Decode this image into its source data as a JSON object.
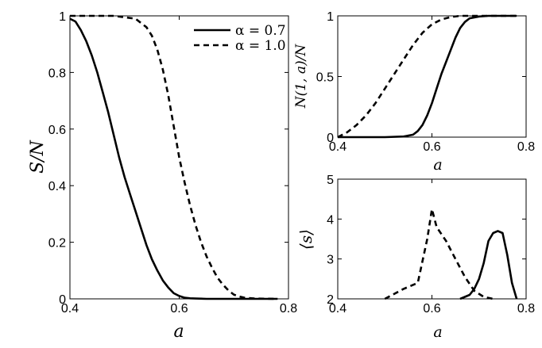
{
  "chart_data": [
    {
      "type": "line",
      "title": "",
      "xlabel": "a",
      "ylabel": "S/N",
      "xlim": [
        0.4,
        0.8
      ],
      "ylim": [
        0,
        1
      ],
      "xticks": [
        "0.4",
        "0.6",
        "0.8"
      ],
      "yticks": [
        "0",
        "0.2",
        "0.4",
        "0.6",
        "0.8",
        "1"
      ],
      "legend_position": "top-right",
      "series": [
        {
          "name": "α = 0.7",
          "style": "solid",
          "x": [
            0.4,
            0.41,
            0.42,
            0.43,
            0.44,
            0.45,
            0.46,
            0.47,
            0.48,
            0.49,
            0.5,
            0.51,
            0.52,
            0.53,
            0.54,
            0.55,
            0.56,
            0.57,
            0.58,
            0.59,
            0.6,
            0.61,
            0.62,
            0.63,
            0.65,
            0.7,
            0.78
          ],
          "y": [
            0.99,
            0.98,
            0.95,
            0.91,
            0.86,
            0.8,
            0.73,
            0.66,
            0.58,
            0.5,
            0.43,
            0.37,
            0.31,
            0.25,
            0.19,
            0.14,
            0.1,
            0.065,
            0.04,
            0.02,
            0.01,
            0.004,
            0.002,
            0.001,
            0.0,
            0.0,
            0.0
          ]
        },
        {
          "name": "α = 1.0",
          "style": "dashed",
          "x": [
            0.4,
            0.45,
            0.48,
            0.5,
            0.52,
            0.54,
            0.55,
            0.56,
            0.57,
            0.58,
            0.59,
            0.6,
            0.61,
            0.62,
            0.63,
            0.64,
            0.65,
            0.66,
            0.67,
            0.68,
            0.69,
            0.7,
            0.71,
            0.72,
            0.74,
            0.78
          ],
          "y": [
            1.0,
            1.0,
            1.0,
            0.995,
            0.99,
            0.96,
            0.93,
            0.88,
            0.81,
            0.72,
            0.61,
            0.5,
            0.41,
            0.33,
            0.26,
            0.2,
            0.15,
            0.11,
            0.075,
            0.05,
            0.03,
            0.015,
            0.008,
            0.004,
            0.001,
            0.0
          ]
        }
      ]
    },
    {
      "type": "line",
      "title": "",
      "xlabel": "a",
      "ylabel": "N(1, a)/N",
      "xlim": [
        0.4,
        0.8
      ],
      "ylim": [
        0,
        1
      ],
      "xticks": [
        "0.4",
        "0.6",
        "0.8"
      ],
      "yticks": [
        "0",
        "0.5",
        "1"
      ],
      "series": [
        {
          "name": "α = 0.7",
          "style": "solid",
          "x": [
            0.4,
            0.5,
            0.54,
            0.56,
            0.57,
            0.58,
            0.59,
            0.6,
            0.61,
            0.62,
            0.63,
            0.64,
            0.65,
            0.66,
            0.67,
            0.68,
            0.7,
            0.72,
            0.75,
            0.78
          ],
          "y": [
            0.0,
            0.0,
            0.005,
            0.02,
            0.05,
            0.1,
            0.18,
            0.28,
            0.4,
            0.52,
            0.62,
            0.72,
            0.82,
            0.9,
            0.95,
            0.98,
            0.995,
            1.0,
            1.0,
            1.0
          ]
        },
        {
          "name": "α = 1.0",
          "style": "dashed",
          "x": [
            0.4,
            0.42,
            0.44,
            0.46,
            0.48,
            0.5,
            0.52,
            0.54,
            0.56,
            0.58,
            0.6,
            0.62,
            0.64,
            0.66,
            0.68,
            0.7,
            0.74,
            0.78
          ],
          "y": [
            0.0,
            0.04,
            0.1,
            0.18,
            0.28,
            0.4,
            0.52,
            0.64,
            0.76,
            0.86,
            0.93,
            0.97,
            0.99,
            1.0,
            1.0,
            1.0,
            1.0,
            1.0
          ]
        }
      ]
    },
    {
      "type": "line",
      "title": "",
      "xlabel": "a",
      "ylabel": "⟨s⟩",
      "xlim": [
        0.4,
        0.8
      ],
      "ylim": [
        2,
        5
      ],
      "xticks": [
        "0.4",
        "0.6",
        "0.8"
      ],
      "yticks": [
        "2",
        "3",
        "4",
        "5"
      ],
      "series": [
        {
          "name": "α = 0.7",
          "style": "solid",
          "x": [
            0.66,
            0.68,
            0.69,
            0.7,
            0.71,
            0.72,
            0.73,
            0.74,
            0.75,
            0.76,
            0.77,
            0.78
          ],
          "y": [
            2.0,
            2.1,
            2.25,
            2.5,
            2.9,
            3.45,
            3.65,
            3.7,
            3.65,
            3.1,
            2.4,
            2.0
          ]
        },
        {
          "name": "α = 1.0",
          "style": "dashed",
          "x": [
            0.5,
            0.54,
            0.57,
            0.59,
            0.6,
            0.61,
            0.63,
            0.65,
            0.67,
            0.69,
            0.71,
            0.73
          ],
          "y": [
            2.0,
            2.25,
            2.4,
            3.5,
            4.25,
            3.8,
            3.45,
            3.0,
            2.55,
            2.2,
            2.05,
            2.0
          ]
        }
      ]
    }
  ]
}
